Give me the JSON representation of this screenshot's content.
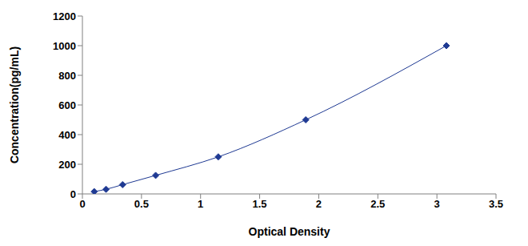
{
  "chart_data": {
    "type": "line",
    "x_label": "Optical Density",
    "y_label": "Concentration(pg/mL)",
    "x": [
      0.1,
      0.2,
      0.34,
      0.62,
      1.15,
      1.89,
      3.08
    ],
    "values": [
      15.6,
      31.25,
      62.5,
      125,
      250,
      500,
      1000
    ],
    "xlim": [
      0,
      3.5
    ],
    "xticks": [
      0,
      0.5,
      1,
      1.5,
      2,
      2.5,
      3,
      3.5
    ],
    "ylim": [
      0,
      1200
    ],
    "yticks": [
      0,
      200,
      400,
      600,
      800,
      1000,
      1200
    ],
    "color": "#1f3a93",
    "marker": "diamond",
    "line_style": "solid",
    "grid": false
  }
}
